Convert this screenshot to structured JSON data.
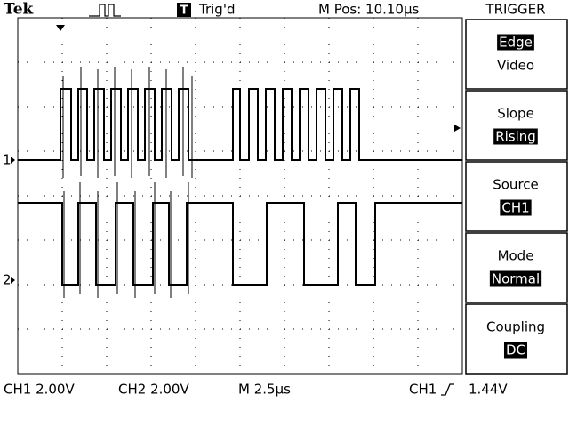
{
  "header": {
    "brand": "Tek",
    "trigger_status": "Trig'd",
    "trigger_icon": "T",
    "position": "M Pos: 10.10µs",
    "menu_title": "TRIGGER"
  },
  "menu": [
    {
      "label": "Edge",
      "value": "Video"
    },
    {
      "label": "Slope",
      "value": "Rising"
    },
    {
      "label": "Source",
      "value": "CH1"
    },
    {
      "label": "Mode",
      "value": "Normal"
    },
    {
      "label": "Coupling",
      "value": "DC"
    }
  ],
  "channels": {
    "ch1_marker": "1",
    "ch2_marker": "2"
  },
  "footer": {
    "ch1_scale": "CH1  2.00V",
    "ch2_scale": "CH2  2.00V",
    "timebase": "M 2.5µs",
    "trigger_source": "CH1",
    "trigger_level": "1.44V"
  }
}
